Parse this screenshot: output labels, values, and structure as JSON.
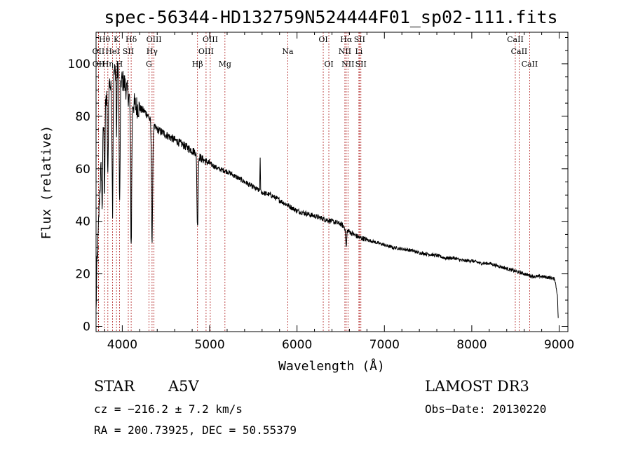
{
  "chart_data": {
    "type": "line",
    "title": "spec-56344-HD132759N524444F01_sp02-111.fits",
    "xlabel": "Wavelength (Å)",
    "ylabel": "Flux (relative)",
    "xlim": [
      3700,
      9100
    ],
    "ylim": [
      -2,
      112
    ],
    "xticks": [
      4000,
      5000,
      6000,
      7000,
      8000,
      9000
    ],
    "yticks": [
      0,
      20,
      40,
      60,
      80,
      100
    ],
    "series": [
      {
        "name": "spectrum",
        "anchors": [
          [
            3700,
            5
          ],
          [
            3710,
            24
          ],
          [
            3720,
            30
          ],
          [
            3740,
            50
          ],
          [
            3760,
            62
          ],
          [
            3780,
            74
          ],
          [
            3800,
            82
          ],
          [
            3830,
            90
          ],
          [
            3860,
            93
          ],
          [
            3880,
            87
          ],
          [
            3900,
            95
          ],
          [
            3930,
            99
          ],
          [
            3960,
            96
          ],
          [
            3990,
            94
          ],
          [
            4020,
            93
          ],
          [
            4050,
            90
          ],
          [
            4080,
            87
          ],
          [
            4100,
            86
          ],
          [
            4150,
            84
          ],
          [
            4200,
            83
          ],
          [
            4250,
            82
          ],
          [
            4300,
            80
          ],
          [
            4350,
            76
          ],
          [
            4400,
            75
          ],
          [
            4450,
            74
          ],
          [
            4500,
            73
          ],
          [
            4550,
            72
          ],
          [
            4600,
            71
          ],
          [
            4650,
            70
          ],
          [
            4700,
            69
          ],
          [
            4750,
            68
          ],
          [
            4800,
            67
          ],
          [
            4850,
            66
          ],
          [
            4900,
            64
          ],
          [
            4950,
            63
          ],
          [
            5000,
            62
          ],
          [
            5100,
            60
          ],
          [
            5200,
            59
          ],
          [
            5300,
            57
          ],
          [
            5400,
            55
          ],
          [
            5500,
            53
          ],
          [
            5600,
            51
          ],
          [
            5700,
            50
          ],
          [
            5800,
            48
          ],
          [
            5900,
            46
          ],
          [
            6000,
            44
          ],
          [
            6100,
            43
          ],
          [
            6200,
            42
          ],
          [
            6300,
            41
          ],
          [
            6400,
            40
          ],
          [
            6500,
            39
          ],
          [
            6600,
            36
          ],
          [
            6700,
            34
          ],
          [
            6800,
            33
          ],
          [
            6900,
            32
          ],
          [
            7000,
            31
          ],
          [
            7100,
            30
          ],
          [
            7200,
            29.5
          ],
          [
            7300,
            29
          ],
          [
            7400,
            28
          ],
          [
            7500,
            27.5
          ],
          [
            7600,
            27
          ],
          [
            7700,
            26
          ],
          [
            7800,
            26
          ],
          [
            7900,
            25
          ],
          [
            8000,
            25
          ],
          [
            8100,
            24
          ],
          [
            8200,
            24
          ],
          [
            8300,
            23
          ],
          [
            8400,
            22
          ],
          [
            8500,
            21
          ],
          [
            8600,
            20
          ],
          [
            8700,
            19
          ],
          [
            8800,
            19
          ],
          [
            8900,
            18.5
          ],
          [
            8950,
            18
          ],
          [
            8980,
            12
          ],
          [
            8990,
            2
          ]
        ],
        "absorption": [
          {
            "x": 3770,
            "depth": 22,
            "width": 7
          },
          {
            "x": 3798,
            "depth": 30,
            "width": 6
          },
          {
            "x": 3835,
            "depth": 35,
            "width": 7
          },
          {
            "x": 3889,
            "depth": 45,
            "width": 7
          },
          {
            "x": 3934,
            "depth": 28,
            "width": 5
          },
          {
            "x": 3970,
            "depth": 50,
            "width": 8
          },
          {
            "x": 4102,
            "depth": 55,
            "width": 9
          },
          {
            "x": 4341,
            "depth": 45,
            "width": 9
          },
          {
            "x": 4861,
            "depth": 28,
            "width": 9
          },
          {
            "x": 6563,
            "depth": 7,
            "width": 8
          }
        ],
        "emission": [
          {
            "x": 5578,
            "height": 12,
            "width": 4
          }
        ]
      }
    ],
    "line_markers": [
      {
        "label": "Hθ",
        "x": 3797,
        "row": 1
      },
      {
        "label": "OII",
        "x": 3727,
        "row": 2
      },
      {
        "label": "OII",
        "x": 3729,
        "row": 3
      },
      {
        "label": "Hη",
        "x": 3835,
        "row": 3
      },
      {
        "label": "HeI",
        "x": 3889,
        "row": 2
      },
      {
        "label": "K",
        "x": 3934,
        "row": 1
      },
      {
        "label": "H",
        "x": 3968,
        "row": 3
      },
      {
        "label": "SII",
        "x": 4069,
        "row": 2
      },
      {
        "label": "Hδ",
        "x": 4102,
        "row": 1
      },
      {
        "label": "OIII",
        "x": 4363,
        "row": 1
      },
      {
        "label": "Hγ",
        "x": 4341,
        "row": 2
      },
      {
        "label": "G",
        "x": 4305,
        "row": 3
      },
      {
        "label": "Hβ",
        "x": 4861,
        "row": 3
      },
      {
        "label": "OIII",
        "x": 5007,
        "row": 1
      },
      {
        "label": "OIII",
        "x": 4959,
        "row": 2
      },
      {
        "label": "Mg",
        "x": 5175,
        "row": 3
      },
      {
        "label": "Na",
        "x": 5894,
        "row": 2
      },
      {
        "label": "OI",
        "x": 6300,
        "row": 1
      },
      {
        "label": "OI",
        "x": 6364,
        "row": 3
      },
      {
        "label": "Hα",
        "x": 6563,
        "row": 1
      },
      {
        "label": "NII",
        "x": 6548,
        "row": 2
      },
      {
        "label": "NII",
        "x": 6583,
        "row": 3
      },
      {
        "label": "SII",
        "x": 6716,
        "row": 1
      },
      {
        "label": "Li",
        "x": 6708,
        "row": 2
      },
      {
        "label": "SII",
        "x": 6731,
        "row": 3
      },
      {
        "label": "CaII",
        "x": 8498,
        "row": 1
      },
      {
        "label": "CaII",
        "x": 8542,
        "row": 2
      },
      {
        "label": "CaII",
        "x": 8662,
        "row": 3
      }
    ],
    "colors": {
      "line": "#000000",
      "marker": "#b02020",
      "axis": "#000000"
    }
  },
  "info": {
    "object_type": "STAR",
    "spectral_class": "A5V",
    "survey": "LAMOST DR3",
    "cz": "cz = −216.2 ± 7.2 km/s",
    "obs_date": "Obs−Date: 20130220",
    "radec": "RA = 200.73925, DEC =  50.55379"
  }
}
